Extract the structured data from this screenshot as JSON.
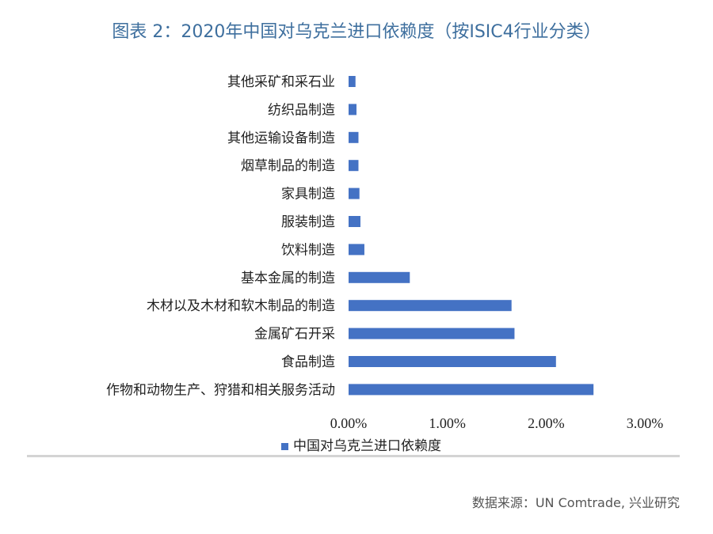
{
  "title": "图表 2：2020年中国对乌克兰进口依赖度（按ISIC4行业分类）",
  "source": "数据来源：UN Comtrade, 兴业研究",
  "chart_data": {
    "type": "bar",
    "orientation": "horizontal",
    "categories": [
      "其他采矿和采石业",
      "纺织品制造",
      "其他运输设备制造",
      "烟草制品的制造",
      "家具制造",
      "服装制造",
      "饮料制造",
      "基本金属的制造",
      "木材以及木材和软木制品的制造",
      "金属矿石开采",
      "食品制造",
      "作物和动物生产、狩猎和相关服务活动"
    ],
    "series": [
      {
        "name": "中国对乌克兰进口依赖度",
        "values": [
          0.07,
          0.08,
          0.1,
          0.1,
          0.11,
          0.12,
          0.16,
          0.62,
          1.65,
          1.68,
          2.1,
          2.48
        ],
        "color": "#4472c4"
      }
    ],
    "xlim": [
      0,
      3
    ],
    "xticks": [
      "0.00%",
      "1.00%",
      "2.00%",
      "3.00%"
    ],
    "xtick_values": [
      0,
      1,
      2,
      3
    ],
    "grid": false,
    "legend_position": "bottom"
  }
}
